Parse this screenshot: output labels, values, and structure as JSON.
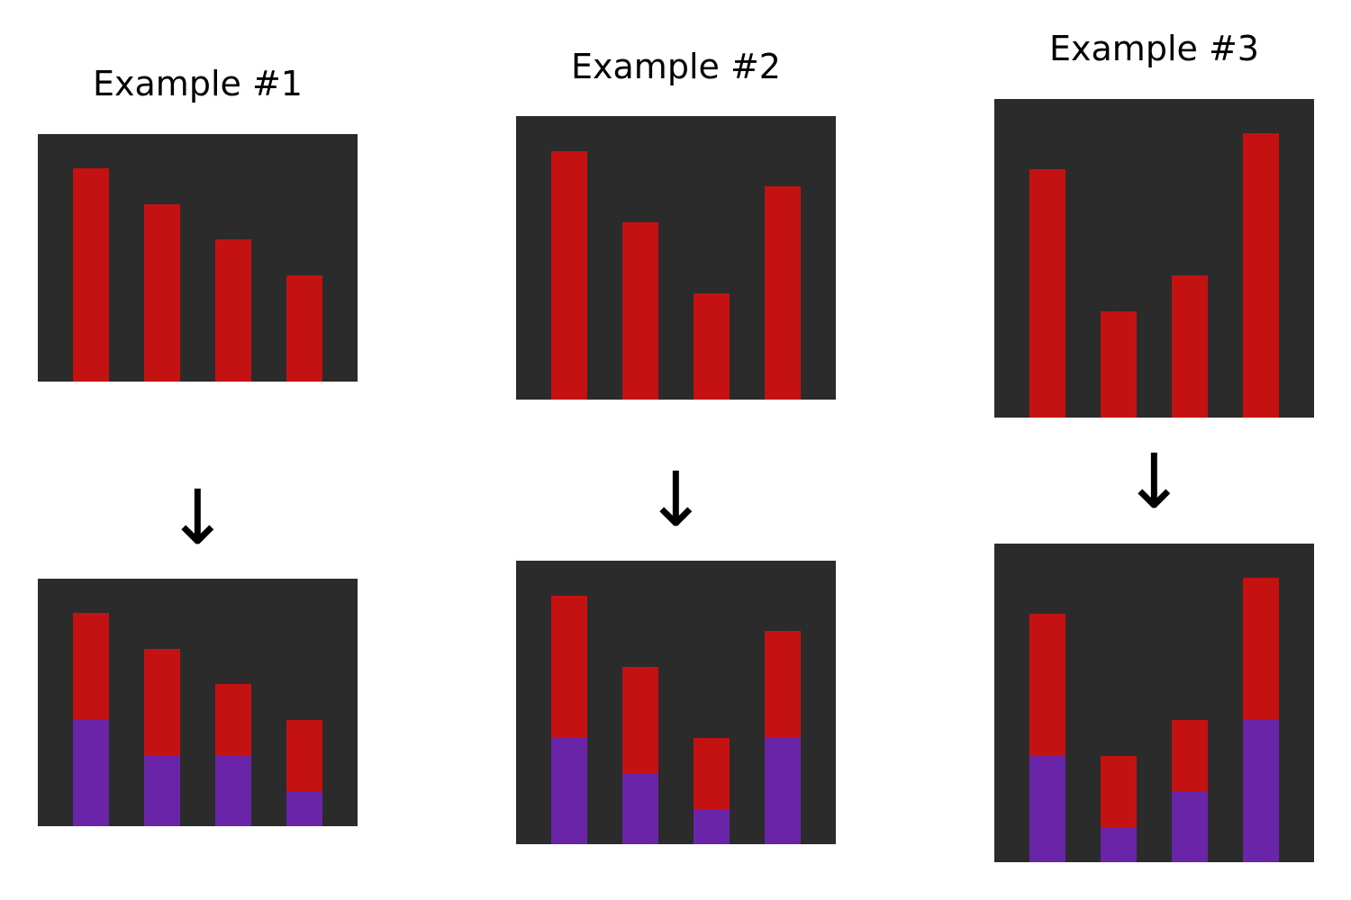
{
  "colors": {
    "background": "#ffffff",
    "panel": "#2b2b2b",
    "bar": "#c41212",
    "overlay": "#6a24a8",
    "text": "#000000"
  },
  "arrow_glyph": "↓",
  "examples": [
    {
      "title": "Example #1",
      "input": {
        "bars": [
          6,
          5,
          4,
          3
        ]
      },
      "output": {
        "bars": [
          6,
          5,
          4,
          3
        ],
        "overlay": [
          3,
          2,
          2,
          1
        ]
      }
    },
    {
      "title": "Example #2",
      "input": {
        "bars": [
          7,
          5,
          3,
          6
        ]
      },
      "output": {
        "bars": [
          7,
          5,
          3,
          6
        ],
        "overlay": [
          3,
          2,
          1,
          3
        ]
      }
    },
    {
      "title": "Example #3",
      "input": {
        "bars": [
          7,
          3,
          4,
          8
        ]
      },
      "output": {
        "bars": [
          7,
          3,
          4,
          8
        ],
        "overlay": [
          3,
          1,
          2,
          4
        ]
      }
    }
  ]
}
